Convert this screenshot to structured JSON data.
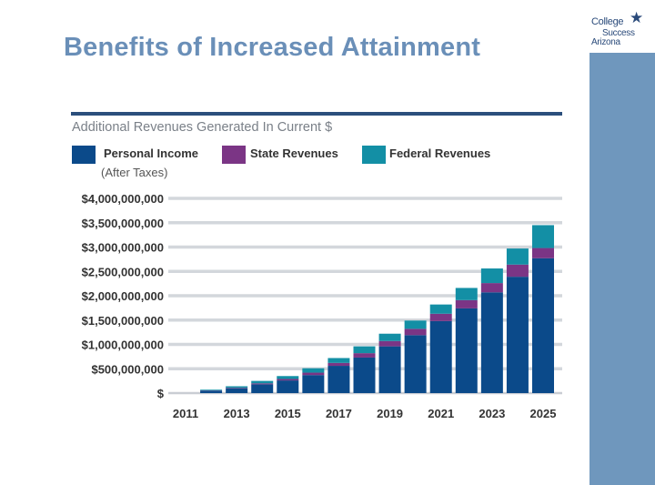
{
  "slide": {
    "title": "Benefits of Increased Attainment",
    "logo": {
      "line1": "College",
      "line2": "Success",
      "line3": "Arizona",
      "icon": "star-icon"
    }
  },
  "chart_data": {
    "type": "bar",
    "stacked": true,
    "title": "Additional Revenues Generated  In Current $",
    "legend": [
      {
        "name": "Personal Income",
        "sub": "(After Taxes)",
        "color": "#0b4a8a"
      },
      {
        "name": "State Revenues",
        "sub": "",
        "color": "#7b3585"
      },
      {
        "name": "Federal Revenues",
        "sub": "",
        "color": "#138fa5"
      }
    ],
    "categories": [
      "2011",
      "2012",
      "2013",
      "2014",
      "2015",
      "2016",
      "2017",
      "2018",
      "2019",
      "2020",
      "2021",
      "2022",
      "2023",
      "2024",
      "2025"
    ],
    "x_tick_labels": [
      "2011",
      "2013",
      "2015",
      "2017",
      "2019",
      "2021",
      "2023",
      "2025"
    ],
    "y_tick_labels": [
      "$",
      "$500,000,000",
      "$1,000,000,000",
      "$1,500,000,000",
      "$2,000,000,000",
      "$2,500,000,000",
      "$3,000,000,000",
      "$3,500,000,000",
      "$4,000,000,000"
    ],
    "ylim": [
      0,
      4000000000
    ],
    "series": [
      {
        "name": "Personal Income",
        "values": [
          0,
          50000000,
          100000000,
          180000000,
          260000000,
          370000000,
          560000000,
          730000000,
          960000000,
          1190000000,
          1480000000,
          1740000000,
          2070000000,
          2390000000,
          2770000000
        ]
      },
      {
        "name": "State Revenues",
        "values": [
          0,
          5000000,
          10000000,
          20000000,
          30000000,
          50000000,
          60000000,
          90000000,
          110000000,
          130000000,
          150000000,
          170000000,
          190000000,
          250000000,
          210000000
        ]
      },
      {
        "name": "Federal Revenues",
        "values": [
          0,
          15000000,
          30000000,
          50000000,
          60000000,
          90000000,
          100000000,
          140000000,
          150000000,
          170000000,
          190000000,
          250000000,
          300000000,
          330000000,
          470000000
        ]
      }
    ]
  }
}
